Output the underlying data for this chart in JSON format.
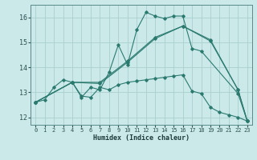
{
  "xlabel": "Humidex (Indice chaleur)",
  "xlim": [
    -0.5,
    23.5
  ],
  "ylim": [
    11.7,
    16.5
  ],
  "yticks": [
    12,
    13,
    14,
    15,
    16
  ],
  "xticks": [
    0,
    1,
    2,
    3,
    4,
    5,
    6,
    7,
    8,
    9,
    10,
    11,
    12,
    13,
    14,
    15,
    16,
    17,
    18,
    19,
    20,
    21,
    22,
    23
  ],
  "bg_color": "#cce9e9",
  "line_color": "#2a7a70",
  "grid_color": "#aacfcf",
  "lines": [
    {
      "x": [
        0,
        1,
        2,
        3,
        4,
        5,
        6,
        7,
        8,
        9,
        10,
        11,
        12,
        13,
        14,
        15,
        16,
        17,
        18,
        22,
        23
      ],
      "y": [
        12.6,
        12.7,
        13.2,
        13.5,
        13.4,
        12.8,
        13.2,
        13.1,
        13.8,
        14.9,
        14.1,
        15.5,
        16.2,
        16.05,
        15.95,
        16.05,
        16.05,
        14.75,
        14.65,
        12.95,
        11.85
      ]
    },
    {
      "x": [
        0,
        4,
        7,
        10,
        13,
        16,
        19,
        22,
        23
      ],
      "y": [
        12.6,
        13.4,
        13.35,
        14.2,
        15.15,
        15.65,
        15.05,
        13.1,
        11.85
      ]
    },
    {
      "x": [
        0,
        4,
        7,
        10,
        13,
        16,
        19,
        22,
        23
      ],
      "y": [
        12.6,
        13.4,
        13.4,
        14.25,
        15.2,
        15.65,
        15.1,
        13.1,
        11.85
      ]
    },
    {
      "x": [
        0,
        4,
        5,
        6,
        7,
        8,
        9,
        10,
        11,
        12,
        13,
        14,
        15,
        16,
        17,
        18,
        19,
        20,
        21,
        22,
        23
      ],
      "y": [
        12.6,
        13.4,
        12.85,
        12.8,
        13.2,
        13.1,
        13.3,
        13.4,
        13.45,
        13.5,
        13.55,
        13.6,
        13.65,
        13.7,
        13.05,
        12.95,
        12.4,
        12.2,
        12.1,
        12.0,
        11.85
      ]
    }
  ]
}
